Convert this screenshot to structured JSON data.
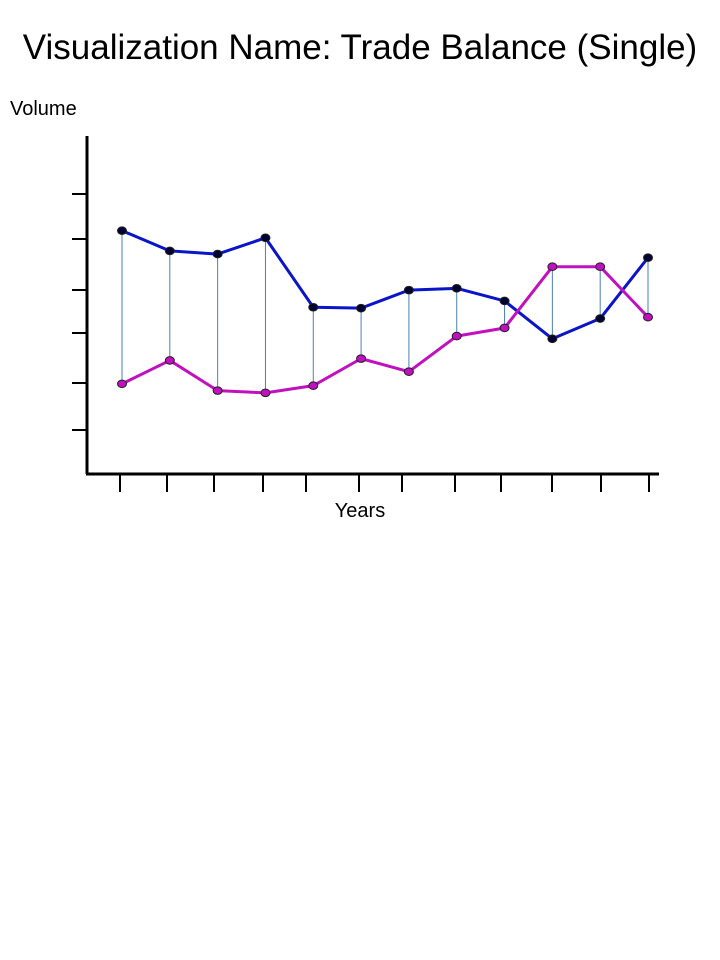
{
  "title": "Visualization Name: Trade Balance (Single)",
  "colors": {
    "series_a": "#0a14c8",
    "series_b": "#c010c0",
    "connector": "#4a7fb5",
    "axis": "#000000",
    "marker_a_fill": "#000033",
    "marker_b_fill": "#c010c0"
  },
  "chart_data": {
    "type": "line",
    "title": "Visualization Name: Trade Balance (Single)",
    "xlabel": "Years",
    "ylabel": "Volume",
    "x": [
      1,
      2,
      3,
      4,
      5,
      6,
      7,
      8,
      9,
      10,
      11,
      12
    ],
    "ylim": [
      0,
      7.5
    ],
    "yticks": [
      1,
      2,
      3,
      4,
      5,
      6
    ],
    "grid": false,
    "legend": "none",
    "series": [
      {
        "values": [
          5.4,
          4.95,
          4.88,
          5.24,
          3.7,
          3.68,
          4.08,
          4.12,
          3.84,
          3.0,
          3.45,
          4.8
        ]
      },
      {
        "values": [
          2.0,
          2.52,
          1.85,
          1.8,
          1.96,
          2.56,
          2.27,
          3.06,
          3.24,
          4.6,
          4.6,
          3.48
        ]
      }
    ],
    "connectors": true
  }
}
